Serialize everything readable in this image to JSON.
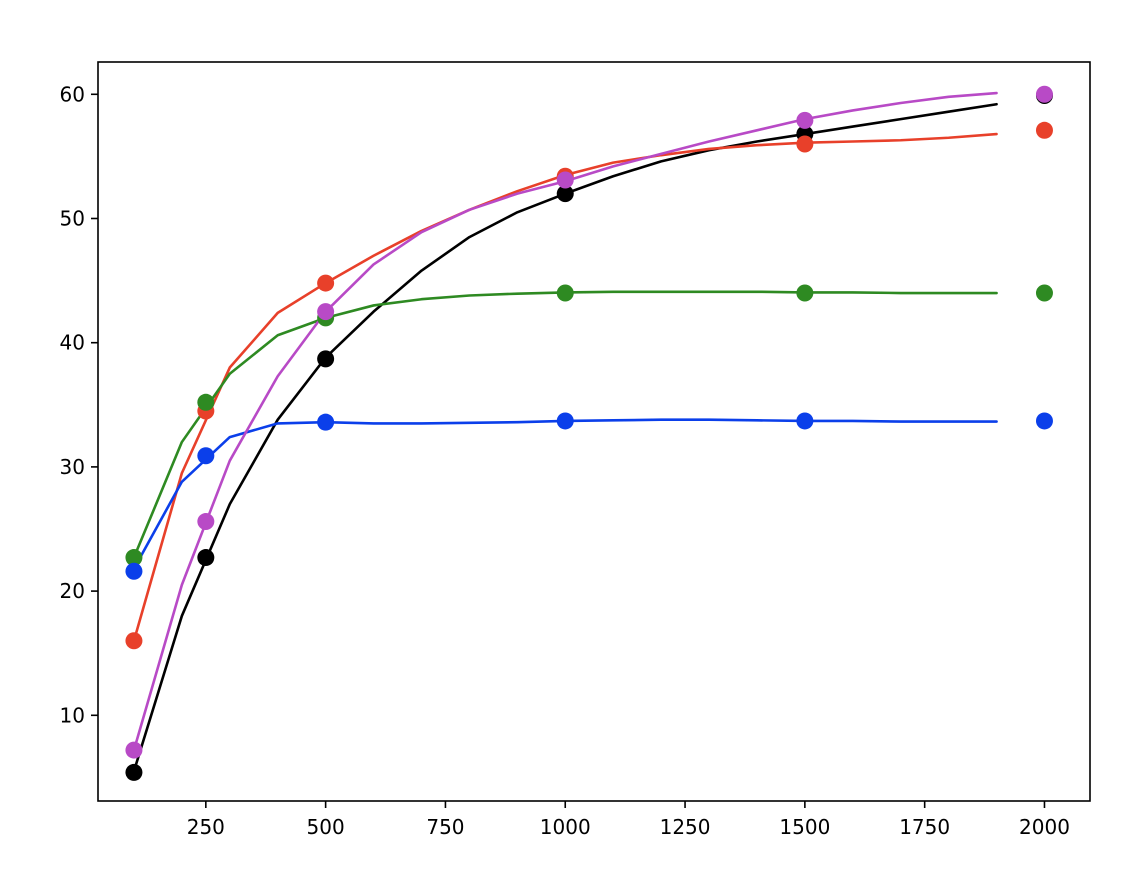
{
  "chart_data": {
    "type": "line",
    "title": "",
    "xlabel": "",
    "ylabel": "",
    "xlim": [
      25,
      2095
    ],
    "ylim": [
      3.1,
      62.6
    ],
    "xticks": [
      250,
      500,
      750,
      1000,
      1250,
      1500,
      1750,
      2000
    ],
    "yticks": [
      10,
      20,
      30,
      40,
      50,
      60
    ],
    "grid": false,
    "legend": "none",
    "series": [
      {
        "color": "#000000",
        "line": {
          "x": [
            100,
            200,
            300,
            400,
            500,
            600,
            700,
            800,
            900,
            1000,
            1100,
            1200,
            1300,
            1400,
            1500,
            1600,
            1700,
            1800,
            1900
          ],
          "y": [
            5.5,
            18.0,
            27.0,
            33.8,
            38.8,
            42.5,
            45.8,
            48.5,
            50.5,
            52.0,
            53.4,
            54.6,
            55.5,
            56.2,
            56.8,
            57.4,
            58.0,
            58.6,
            59.2
          ]
        },
        "points": {
          "x": [
            100,
            250,
            500,
            1000,
            1500,
            2000
          ],
          "y": [
            5.4,
            22.7,
            38.7,
            52.0,
            56.8,
            59.9
          ]
        }
      },
      {
        "color": "#e8402a",
        "line": {
          "x": [
            100,
            200,
            300,
            400,
            500,
            600,
            700,
            800,
            900,
            1000,
            1100,
            1200,
            1300,
            1400,
            1500,
            1600,
            1700,
            1800,
            1900
          ],
          "y": [
            16.0,
            29.5,
            38.0,
            42.4,
            44.8,
            47.0,
            49.0,
            50.7,
            52.2,
            53.5,
            54.5,
            55.1,
            55.6,
            55.9,
            56.1,
            56.2,
            56.3,
            56.5,
            56.8
          ]
        },
        "points": {
          "x": [
            100,
            250,
            500,
            1000,
            1500,
            2000
          ],
          "y": [
            16.0,
            34.5,
            44.8,
            53.4,
            56.0,
            57.1
          ]
        }
      },
      {
        "color": "#2e8a22",
        "line": {
          "x": [
            100,
            200,
            300,
            400,
            500,
            600,
            700,
            800,
            900,
            1000,
            1100,
            1200,
            1300,
            1400,
            1500,
            1600,
            1700,
            1800,
            1900
          ],
          "y": [
            22.7,
            32.0,
            37.5,
            40.6,
            42.0,
            43.0,
            43.5,
            43.8,
            43.95,
            44.05,
            44.1,
            44.1,
            44.1,
            44.1,
            44.05,
            44.05,
            44.0,
            44.0,
            44.0
          ]
        },
        "points": {
          "x": [
            100,
            250,
            500,
            1000,
            1500,
            2000
          ],
          "y": [
            22.7,
            35.2,
            42.0,
            44.0,
            44.0,
            44.0
          ]
        }
      },
      {
        "color": "#0b3fea",
        "line": {
          "x": [
            100,
            200,
            300,
            400,
            500,
            600,
            700,
            800,
            900,
            1000,
            1100,
            1200,
            1300,
            1400,
            1500,
            1600,
            1700,
            1800,
            1900
          ],
          "y": [
            21.8,
            28.8,
            32.4,
            33.5,
            33.6,
            33.5,
            33.5,
            33.55,
            33.6,
            33.7,
            33.75,
            33.8,
            33.8,
            33.75,
            33.7,
            33.7,
            33.65,
            33.65,
            33.65
          ]
        },
        "points": {
          "x": [
            100,
            250,
            500,
            1000,
            1500,
            2000
          ],
          "y": [
            21.6,
            30.9,
            33.6,
            33.7,
            33.7,
            33.7
          ]
        }
      },
      {
        "color": "#b84ac6",
        "line": {
          "x": [
            100,
            200,
            300,
            400,
            500,
            600,
            700,
            800,
            900,
            1000,
            1100,
            1200,
            1300,
            1400,
            1500,
            1600,
            1700,
            1800,
            1900
          ],
          "y": [
            7.2,
            20.5,
            30.5,
            37.3,
            42.5,
            46.3,
            48.9,
            50.7,
            52.0,
            53.0,
            54.2,
            55.2,
            56.2,
            57.1,
            58.0,
            58.7,
            59.3,
            59.8,
            60.1
          ]
        },
        "points": {
          "x": [
            100,
            250,
            500,
            1000,
            1500,
            2000
          ],
          "y": [
            7.2,
            25.6,
            42.5,
            53.1,
            57.9,
            60.0
          ]
        }
      }
    ]
  }
}
